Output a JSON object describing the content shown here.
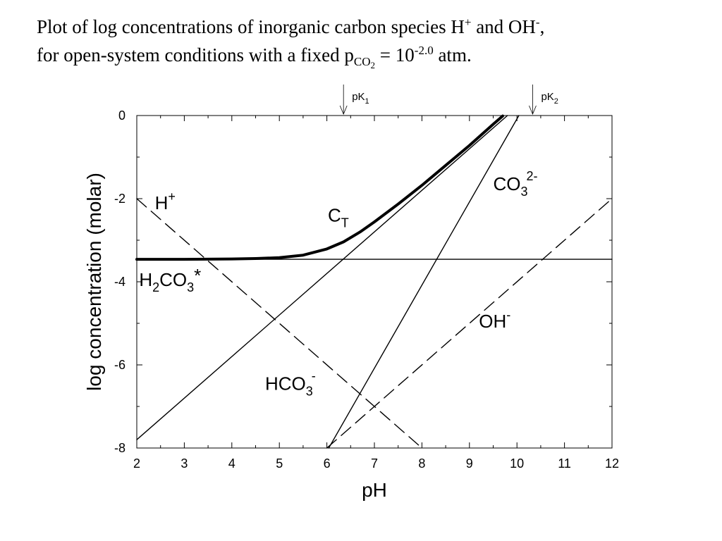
{
  "title": {
    "line1_a": "Plot of log concentrations of inorganic carbon species H",
    "line1_sup1": "+",
    "line1_b": " and OH",
    "line1_sup2": "-",
    "line1_c": ",",
    "line2_a": "for open-system conditions with a fixed p",
    "line2_sub": "CO",
    "line2_subsub": "2",
    "line2_b": " = 10",
    "line2_sup": "-2.0",
    "line2_c": " atm."
  },
  "chart_data": {
    "type": "line",
    "xlabel": "pH",
    "ylabel": "log concentration (molar)",
    "xlim": [
      2,
      12
    ],
    "ylim": [
      -8,
      0
    ],
    "xticks": [
      2,
      3,
      4,
      5,
      6,
      7,
      8,
      9,
      10,
      11,
      12
    ],
    "yticks": [
      0,
      -2,
      -4,
      -6,
      -8
    ],
    "minor_xticks": [
      2.5,
      3.5,
      4.5,
      5.5,
      6.5,
      7.5,
      8.5,
      9.5,
      10.5,
      11.5
    ],
    "minor_yticks": [
      -1,
      -3,
      -5,
      -7
    ],
    "series": [
      {
        "name": "H+",
        "label": {
          "base": "H",
          "sup": "+"
        },
        "style": "dashed",
        "x": [
          2,
          8
        ],
        "y": [
          -2,
          -8
        ]
      },
      {
        "name": "OH-",
        "label": {
          "base": "OH",
          "sup": "-"
        },
        "style": "dashed",
        "x": [
          6,
          12
        ],
        "y": [
          -8,
          -2
        ]
      },
      {
        "name": "H2CO3*",
        "label": {
          "parts": [
            "H",
            "2",
            "CO",
            "3",
            "*"
          ]
        },
        "style": "solid",
        "x": [
          2,
          12
        ],
        "y": [
          -3.46,
          -3.46
        ]
      },
      {
        "name": "HCO3-",
        "label": {
          "base": "HCO",
          "sub": "3",
          "sup": "-"
        },
        "style": "solid",
        "x": [
          2,
          9.8
        ],
        "y": [
          -7.8,
          0
        ]
      },
      {
        "name": "CO3 2-",
        "label": {
          "base": "CO",
          "sub": "3",
          "sup": "2-"
        },
        "style": "solid",
        "x": [
          6.04,
          10.04
        ],
        "y": [
          -8,
          0
        ]
      },
      {
        "name": "CT",
        "label": {
          "base": "C",
          "sub": "T"
        },
        "style": "bold",
        "x": [
          2,
          3,
          4,
          4.5,
          5,
          5.5,
          6,
          6.35,
          6.7,
          7,
          7.5,
          8,
          8.5,
          9,
          9.5,
          9.7
        ],
        "y": [
          -3.46,
          -3.46,
          -3.45,
          -3.44,
          -3.42,
          -3.36,
          -3.21,
          -3.04,
          -2.8,
          -2.56,
          -2.13,
          -1.68,
          -1.2,
          -0.72,
          -0.21,
          -0.01
        ]
      }
    ],
    "annotations": [
      {
        "text": "pK",
        "sub": "1",
        "x": 6.35
      },
      {
        "text": "pK",
        "sub": "2",
        "x": 10.33
      }
    ],
    "grid": false,
    "legend": "none"
  }
}
